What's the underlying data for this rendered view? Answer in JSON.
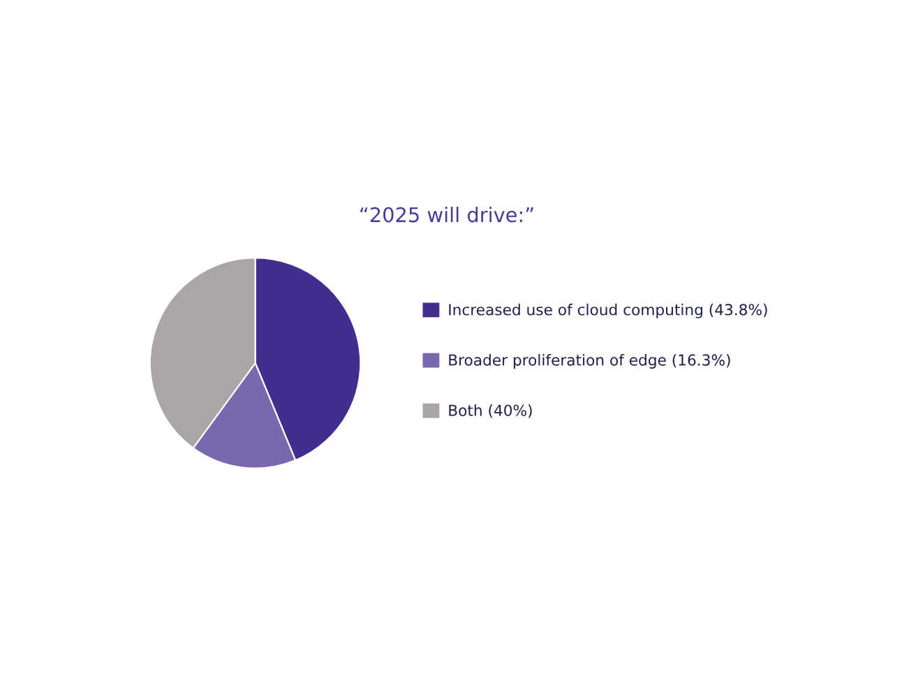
{
  "chart_data": {
    "type": "pie",
    "title": "“2025 will drive:”",
    "categories": [
      "Increased use of cloud computing (43.8%)",
      "Broader proliferation of edge (16.3%)",
      "Both (40%)"
    ],
    "values": [
      43.8,
      16.3,
      40
    ],
    "colors": [
      "#432d8f",
      "#7a68ae",
      "#aca5a8"
    ],
    "legend": "right"
  }
}
